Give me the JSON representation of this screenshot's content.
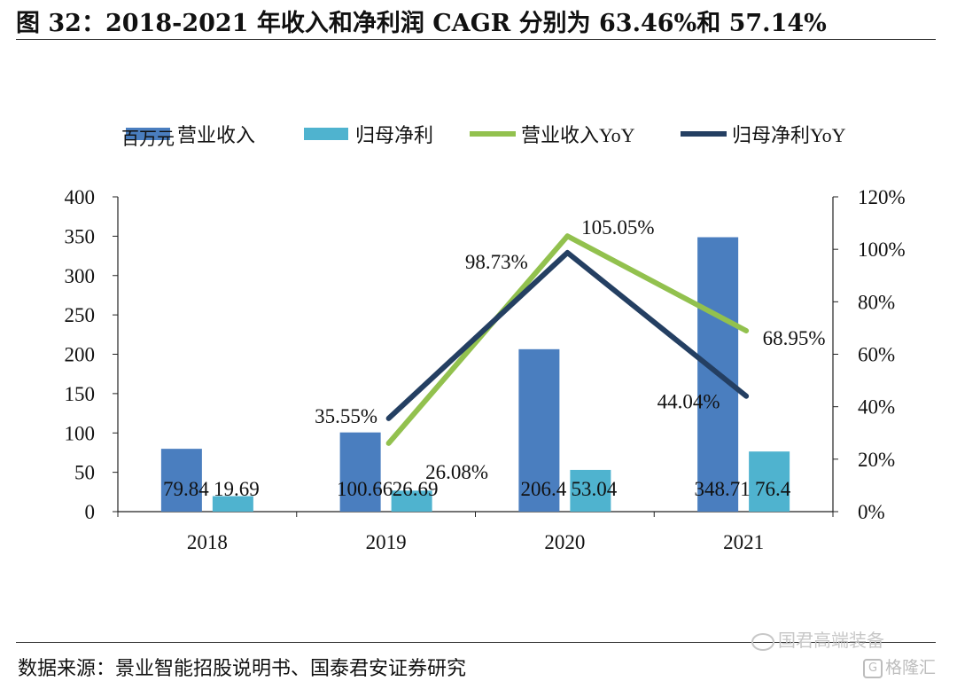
{
  "figure": {
    "title": "图 32：2018-2021 年收入和净利润 CAGR 分别为 63.46%和 57.14%",
    "source": "数据来源：景业智能招股说明书、国泰君安证券研究",
    "watermark": "国君高端装备",
    "logo_text": "格隆汇",
    "logo_glyph": "G"
  },
  "colors": {
    "revenue_bar": "#4a7ebf",
    "profit_bar": "#4fb3cf",
    "revenue_yoy": "#92c14e",
    "profit_yoy": "#243f62"
  },
  "chart_data": {
    "type": "bar",
    "left_unit_label": "百万元",
    "categories": [
      "2018",
      "2019",
      "2020",
      "2021"
    ],
    "series": [
      {
        "name": "营业收入",
        "type": "bar",
        "axis": "left",
        "values": [
          79.84,
          100.66,
          206.4,
          348.71
        ],
        "labels": [
          "79.84",
          "100.66",
          "206.4",
          "348.71"
        ]
      },
      {
        "name": "归母净利",
        "type": "bar",
        "axis": "left",
        "values": [
          19.69,
          26.69,
          53.04,
          76.4
        ],
        "labels": [
          "19.69",
          "26.69",
          "53.04",
          "76.4"
        ]
      },
      {
        "name": "营业收入YoY",
        "type": "line",
        "axis": "right",
        "values": [
          null,
          26.08,
          105.05,
          68.95
        ],
        "labels": [
          "",
          "26.08%",
          "105.05%",
          "68.95%"
        ]
      },
      {
        "name": "归母净利YoY",
        "type": "line",
        "axis": "right",
        "values": [
          null,
          35.55,
          98.73,
          44.04
        ],
        "labels": [
          "",
          "35.55%",
          "98.73%",
          "44.04%"
        ]
      }
    ],
    "y_left": {
      "ylim": [
        0,
        400
      ],
      "ticks": [
        "0",
        "50",
        "100",
        "150",
        "200",
        "250",
        "300",
        "350",
        "400"
      ]
    },
    "y_right": {
      "ylim": [
        0,
        120
      ],
      "ticks": [
        "0%",
        "20%",
        "40%",
        "60%",
        "80%",
        "100%",
        "120%"
      ]
    },
    "legend_position": "top",
    "grid": false
  }
}
